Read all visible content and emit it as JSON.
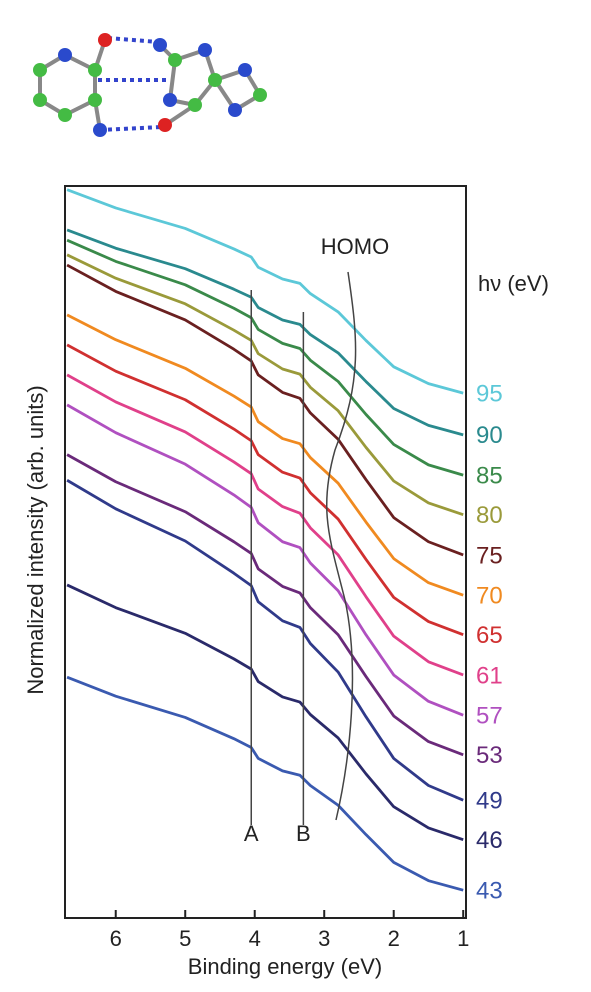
{
  "chart_data": {
    "type": "line",
    "x_label": "Binding energy (eV)",
    "y_label": "Normalized intensity (arb. units)",
    "legend_title": "hν (eV)",
    "x": [
      6.7,
      6.0,
      5.0,
      4.3,
      4.05,
      3.95,
      3.6,
      3.35,
      3.2,
      2.8,
      2.4,
      2.0,
      1.5,
      1.0
    ],
    "xlim": [
      6.73,
      0.96
    ],
    "xticks": [
      6,
      5,
      4,
      3,
      2,
      1
    ],
    "ylim": [
      0,
      100
    ],
    "annotations": [
      {
        "text": "A",
        "x": 4.05
      },
      {
        "text": "B",
        "x": 3.3
      },
      {
        "text": "HOMO"
      }
    ],
    "series": [
      {
        "name": "95",
        "color": "#5cc8d8",
        "values": [
          99.5,
          97.0,
          94.2,
          91.4,
          90.3,
          88.9,
          87.3,
          86.7,
          85.3,
          82.8,
          78.9,
          75.3,
          73.0,
          71.7
        ]
      },
      {
        "name": "90",
        "color": "#2a8a8e",
        "values": [
          94.0,
          91.5,
          88.7,
          85.9,
          84.8,
          83.4,
          81.7,
          81.1,
          79.7,
          77.2,
          73.3,
          69.6,
          67.3,
          66.0
        ]
      },
      {
        "name": "85",
        "color": "#3a8a4a",
        "values": [
          92.6,
          89.7,
          86.5,
          83.3,
          82.0,
          80.4,
          78.5,
          77.8,
          76.2,
          73.3,
          68.8,
          64.7,
          61.9,
          60.5
        ]
      },
      {
        "name": "80",
        "color": "#9a9a3a",
        "values": [
          90.6,
          87.4,
          83.9,
          80.3,
          78.9,
          77.1,
          75.0,
          74.3,
          72.5,
          69.3,
          64.3,
          59.7,
          56.7,
          55.1
        ]
      },
      {
        "name": "75",
        "color": "#6a2020",
        "values": [
          89.2,
          85.6,
          81.7,
          77.7,
          76.1,
          74.2,
          71.8,
          71.0,
          69.0,
          65.4,
          59.9,
          54.7,
          51.4,
          49.6
        ]
      },
      {
        "name": "70",
        "color": "#f08a20",
        "values": [
          82.4,
          79.0,
          75.1,
          71.3,
          69.8,
          67.8,
          65.5,
          64.8,
          62.9,
          59.4,
          54.1,
          49.1,
          45.8,
          44.1
        ]
      },
      {
        "name": "65",
        "color": "#d03030",
        "values": [
          78.3,
          74.7,
          70.8,
          66.8,
          65.2,
          63.3,
          60.9,
          60.1,
          58.1,
          54.5,
          49.0,
          43.8,
          40.5,
          38.7
        ]
      },
      {
        "name": "61",
        "color": "#e0408a",
        "values": [
          74.2,
          70.5,
          66.4,
          62.3,
          60.7,
          58.6,
          56.2,
          55.3,
          53.3,
          49.6,
          43.9,
          38.5,
          35.0,
          33.2
        ]
      },
      {
        "name": "57",
        "color": "#b050c0",
        "values": [
          70.1,
          66.3,
          62.0,
          57.8,
          56.1,
          54.0,
          51.4,
          50.6,
          48.5,
          44.7,
          38.7,
          33.2,
          29.6,
          27.7
        ]
      },
      {
        "name": "53",
        "color": "#6a2a7a",
        "values": [
          63.3,
          59.6,
          55.5,
          51.4,
          49.8,
          47.7,
          45.3,
          44.4,
          42.4,
          38.7,
          33.0,
          27.6,
          24.1,
          22.3
        ]
      },
      {
        "name": "49",
        "color": "#303a8a",
        "values": [
          59.8,
          55.9,
          51.5,
          47.1,
          45.4,
          43.2,
          40.6,
          39.7,
          37.5,
          33.6,
          27.5,
          21.8,
          18.1,
          16.1
        ]
      },
      {
        "name": "46",
        "color": "#2a2a6a",
        "values": [
          45.5,
          42.4,
          38.9,
          35.4,
          34.0,
          32.3,
          30.2,
          29.5,
          27.8,
          24.6,
          19.7,
          15.2,
          12.3,
          10.7
        ]
      },
      {
        "name": "43",
        "color": "#3a5ab0",
        "values": [
          32.9,
          30.3,
          27.4,
          24.5,
          23.3,
          21.8,
          20.1,
          19.5,
          18.1,
          15.4,
          11.4,
          7.6,
          5.1,
          3.8
        ]
      }
    ]
  }
}
